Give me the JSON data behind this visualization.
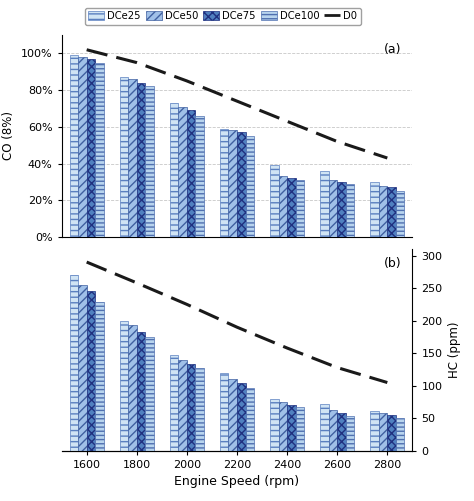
{
  "engine_speeds": [
    1600,
    1800,
    2000,
    2200,
    2400,
    2600,
    2800
  ],
  "co_DCe25": [
    99,
    87,
    73,
    59,
    39,
    36,
    30
  ],
  "co_DCe50": [
    98,
    86,
    71,
    58,
    33,
    31,
    28
  ],
  "co_DCe75": [
    97,
    84,
    69,
    57,
    32,
    30,
    27
  ],
  "co_DCe100": [
    95,
    82,
    66,
    55,
    31,
    29,
    25
  ],
  "co_D0": [
    102,
    95,
    85,
    74,
    63,
    52,
    43
  ],
  "hc_DCe25": [
    270,
    200,
    148,
    120,
    80,
    72,
    62
  ],
  "hc_DCe50": [
    255,
    193,
    140,
    110,
    75,
    63,
    58
  ],
  "hc_DCe75": [
    245,
    183,
    133,
    104,
    71,
    58,
    55
  ],
  "hc_DCe100": [
    228,
    175,
    128,
    97,
    67,
    54,
    51
  ],
  "hc_D0": [
    290,
    258,
    225,
    190,
    158,
    128,
    105
  ],
  "legend_labels": [
    "DCe25",
    "DCe50",
    "DCe75",
    "DCe100",
    "D0"
  ],
  "xlabel": "Engine Speed (rpm)",
  "ylabel_a": "CO (8%)",
  "ylabel_b": "HC (ppm)",
  "label_a": "(a)",
  "label_b": "(b)",
  "yticks_a": [
    0,
    20,
    40,
    60,
    80,
    100
  ],
  "ytick_labels_a": [
    "0%",
    "20%",
    "40%",
    "60%",
    "80%",
    "100%"
  ],
  "yticks_b": [
    0,
    50,
    100,
    150,
    200,
    250,
    300
  ],
  "background": "#ffffff",
  "grid_color": "#c8c8c8",
  "dashed_color": "#1a1a1a",
  "bar_configs": [
    {
      "facecolor": "#d0e4f4",
      "edgecolor": "#5a7fbf",
      "hatch": "---"
    },
    {
      "facecolor": "#a0c0e8",
      "edgecolor": "#4060a0",
      "hatch": "////"
    },
    {
      "facecolor": "#5080c0",
      "edgecolor": "#203080",
      "hatch": "xxxx"
    },
    {
      "facecolor": "#b8d4ee",
      "edgecolor": "#5070b0",
      "hatch": "----"
    }
  ]
}
